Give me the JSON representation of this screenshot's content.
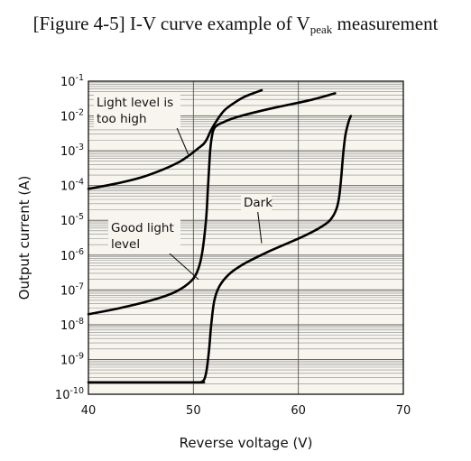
{
  "figure": {
    "title": {
      "prefix": "[Figure 4-5] I-V curve example of V",
      "sub": "peak",
      "suffix": " measurement"
    }
  },
  "chart_data": {
    "type": "line",
    "title": "[Figure 4-5] I-V curve example of Vpeak measurement",
    "xlabel": "Reverse voltage (V)",
    "ylabel": "Output current (A)",
    "xlim": [
      40,
      70
    ],
    "ylim": [
      1e-10,
      0.1
    ],
    "yscale": "log",
    "grid": true,
    "x_ticks": [
      40,
      50,
      60,
      70
    ],
    "y_tick_exponents": [
      -1,
      -2,
      -3,
      -4,
      -5,
      -6,
      -7,
      -8,
      -9,
      -10
    ],
    "y_tick_base": "10",
    "background_color": "#f7f5ee",
    "line_color": "#000000",
    "series": [
      {
        "x": [
          40,
          43,
          45,
          47,
          48.5,
          49.5,
          50.5,
          51,
          51.3,
          51.7,
          52.3,
          53,
          54,
          55,
          56.5
        ],
        "y": [
          8e-05,
          0.00012,
          0.00017,
          0.00028,
          0.00045,
          0.0007,
          0.0012,
          0.0016,
          0.0022,
          0.004,
          0.008,
          0.015,
          0.025,
          0.037,
          0.055
        ]
      },
      {
        "x": [
          40,
          43,
          46,
          48,
          49.5,
          50.3,
          50.8,
          51.2,
          51.4,
          51.6,
          51.8,
          52,
          52.3,
          52.8,
          53.5,
          55,
          58,
          61,
          63.5
        ],
        "y": [
          2e-08,
          3e-08,
          5e-08,
          8e-08,
          1.5e-07,
          3e-07,
          1e-06,
          1e-05,
          0.0001,
          0.001,
          0.003,
          0.0045,
          0.0055,
          0.0065,
          0.008,
          0.011,
          0.018,
          0.028,
          0.045
        ]
      },
      {
        "x": [
          40,
          50,
          50.8,
          51.1,
          51.3,
          51.5,
          51.7,
          52,
          52.5,
          53.5,
          55,
          57,
          59,
          60.5,
          62,
          63,
          63.6,
          63.9,
          64.1,
          64.3,
          64.5,
          64.8,
          65
        ],
        "y": [
          2.2e-10,
          2.2e-10,
          2.3e-10,
          3e-10,
          6e-10,
          2e-09,
          1e-08,
          5e-08,
          1.3e-07,
          3e-07,
          6e-07,
          1.2e-06,
          2.2e-06,
          3.5e-06,
          6e-06,
          1e-05,
          2e-05,
          5e-05,
          0.0002,
          0.001,
          0.003,
          0.007,
          0.01
        ]
      }
    ],
    "annotations": [
      {
        "lines": [
          "Light level is",
          "too high"
        ],
        "x": 49.5,
        "y": 0.0008
      },
      {
        "lines": [
          "Good light",
          "level"
        ],
        "x": 50.5,
        "y": 2e-07
      },
      {
        "lines": [
          "Dark"
        ],
        "x": 56.5,
        "y": 2.2e-06
      }
    ]
  }
}
